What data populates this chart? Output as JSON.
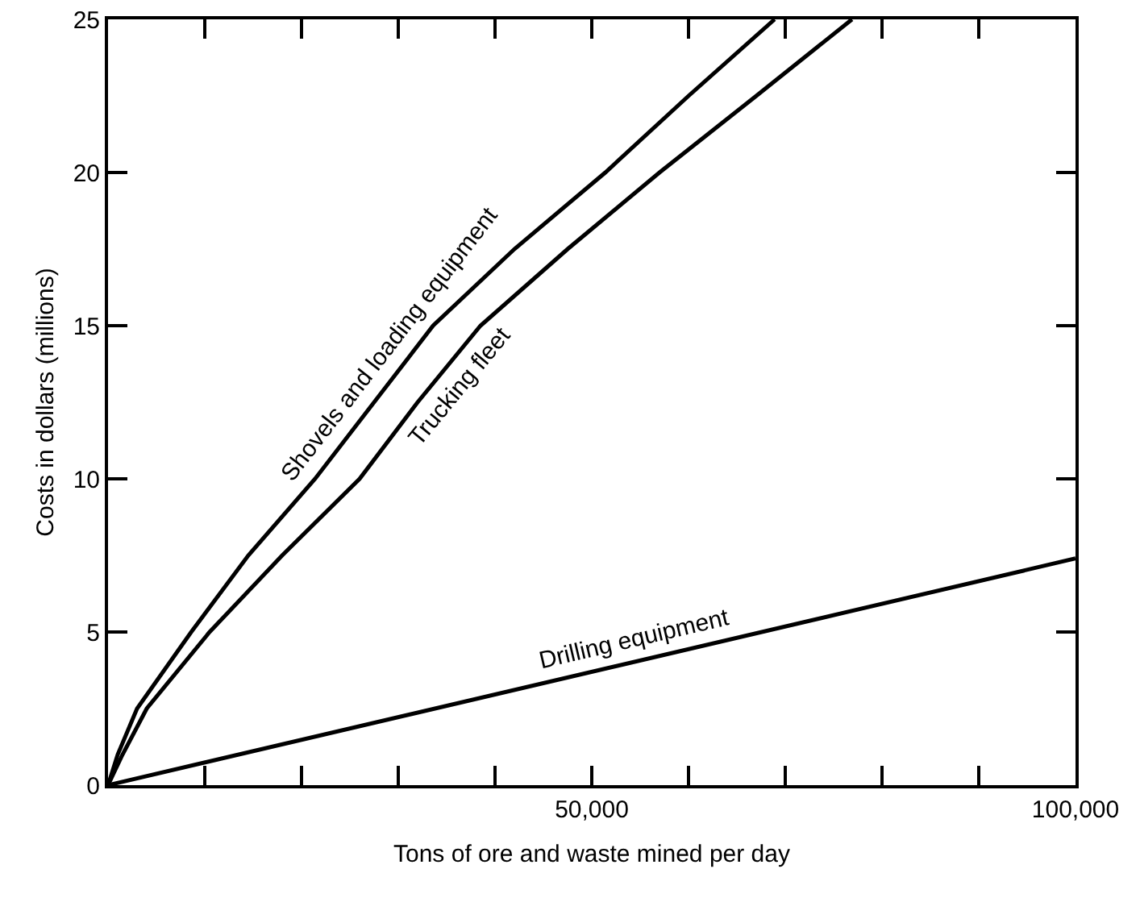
{
  "chart_data": {
    "type": "line",
    "xlabel": "Tons of ore and waste mined per day",
    "ylabel": "Costs in dollars (millions)",
    "xlim": [
      0,
      100000
    ],
    "ylim": [
      0,
      25
    ],
    "xticks": [
      {
        "value": 10000,
        "label": null
      },
      {
        "value": 20000,
        "label": null
      },
      {
        "value": 30000,
        "label": null
      },
      {
        "value": 40000,
        "label": null
      },
      {
        "value": 50000,
        "label": "50,000"
      },
      {
        "value": 60000,
        "label": null
      },
      {
        "value": 70000,
        "label": null
      },
      {
        "value": 80000,
        "label": null
      },
      {
        "value": 90000,
        "label": null
      },
      {
        "value": 100000,
        "label": "100,000"
      }
    ],
    "yticks": [
      0,
      5,
      10,
      15,
      20,
      25
    ],
    "grid": false,
    "legend": false,
    "marker": "none",
    "line_style": "solid",
    "series": [
      {
        "name": "Shovels and loading equipment",
        "color": "#000000",
        "x": [
          0,
          1000,
          3000,
          8600,
          14500,
          21400,
          27500,
          33600,
          42000,
          51400,
          60000,
          68900
        ],
        "values": [
          0,
          1,
          2.5,
          5,
          7.5,
          10,
          12.5,
          15,
          17.5,
          20,
          22.5,
          25
        ]
      },
      {
        "name": "Trucking fleet",
        "color": "#000000",
        "x": [
          0,
          1500,
          4000,
          10500,
          18000,
          26000,
          32000,
          38500,
          47500,
          57000,
          67000,
          76900
        ],
        "values": [
          0,
          1,
          2.5,
          5,
          7.5,
          10,
          12.5,
          15,
          17.5,
          20,
          22.5,
          25
        ]
      },
      {
        "name": "Drilling equipment",
        "color": "#000000",
        "x": [
          0,
          100000
        ],
        "values": [
          0,
          7.4
        ]
      }
    ]
  }
}
